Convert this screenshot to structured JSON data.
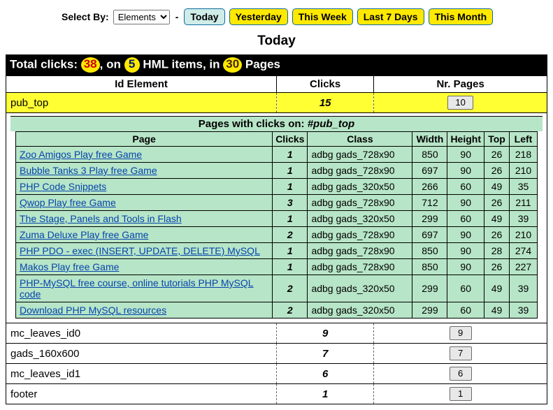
{
  "topbar": {
    "select_by_label": "Select By:",
    "select_value": "Elements",
    "buttons": {
      "today": "Today",
      "yesterday": "Yesterday",
      "this_week": "This Week",
      "last7": "Last 7 Days",
      "this_month": "This Month"
    }
  },
  "period_title": "Today",
  "totals": {
    "prefix": "Total clicks: ",
    "clicks": "38",
    "mid1": ", on ",
    "items": "5",
    "mid2": " HML items, in ",
    "pages": "30",
    "suffix": " Pages"
  },
  "outer_headers": {
    "id": "Id Element",
    "clicks": "Clicks",
    "nr": "Nr. Pages"
  },
  "row_selected": {
    "id": "pub_top",
    "clicks": "15",
    "nr": "10"
  },
  "sub_header_prefix": "Pages with clicks on: ",
  "sub_header_target": "#pub_top",
  "inner_headers": {
    "page": "Page",
    "clicks": "Clicks",
    "class": "Class",
    "width": "Width",
    "height": "Height",
    "top": "Top",
    "left": "Left"
  },
  "inner_rows": [
    {
      "page": "Zoo Amigos Play free Game",
      "clicks": "1",
      "class": "adbg gads_728x90",
      "w": "850",
      "h": "90",
      "t": "26",
      "l": "218"
    },
    {
      "page": "Bubble Tanks 3 Play free Game",
      "clicks": "1",
      "class": "adbg gads_728x90",
      "w": "697",
      "h": "90",
      "t": "26",
      "l": "210"
    },
    {
      "page": "PHP Code Snippets",
      "clicks": "1",
      "class": "adbg gads_320x50",
      "w": "266",
      "h": "60",
      "t": "49",
      "l": "35"
    },
    {
      "page": "Qwop Play free Game",
      "clicks": "3",
      "class": "adbg gads_728x90",
      "w": "712",
      "h": "90",
      "t": "26",
      "l": "211"
    },
    {
      "page": "The Stage, Panels and Tools in Flash",
      "clicks": "1",
      "class": "adbg gads_320x50",
      "w": "299",
      "h": "60",
      "t": "49",
      "l": "39"
    },
    {
      "page": "Zuma Deluxe Play free Game",
      "clicks": "2",
      "class": "adbg gads_728x90",
      "w": "697",
      "h": "90",
      "t": "26",
      "l": "210"
    },
    {
      "page": "PHP PDO - exec (INSERT, UPDATE, DELETE) MySQL",
      "clicks": "1",
      "class": "adbg gads_728x90",
      "w": "850",
      "h": "90",
      "t": "28",
      "l": "274"
    },
    {
      "page": "Makos Play free Game",
      "clicks": "1",
      "class": "adbg gads_728x90",
      "w": "850",
      "h": "90",
      "t": "26",
      "l": "227"
    },
    {
      "page": "PHP-MySQL free course, online tutorials PHP MySQL code",
      "clicks": "2",
      "class": "adbg gads_320x50",
      "w": "299",
      "h": "60",
      "t": "49",
      "l": "39"
    },
    {
      "page": "Download PHP MySQL resources",
      "clicks": "2",
      "class": "adbg gads_320x50",
      "w": "299",
      "h": "60",
      "t": "49",
      "l": "39"
    }
  ],
  "rest_rows": [
    {
      "id": "mc_leaves_id0",
      "clicks": "9",
      "nr": "9"
    },
    {
      "id": "gads_160x600",
      "clicks": "7",
      "nr": "7"
    },
    {
      "id": "mc_leaves_id1",
      "clicks": "6",
      "nr": "6"
    },
    {
      "id": "footer",
      "clicks": "1",
      "nr": "1"
    }
  ]
}
